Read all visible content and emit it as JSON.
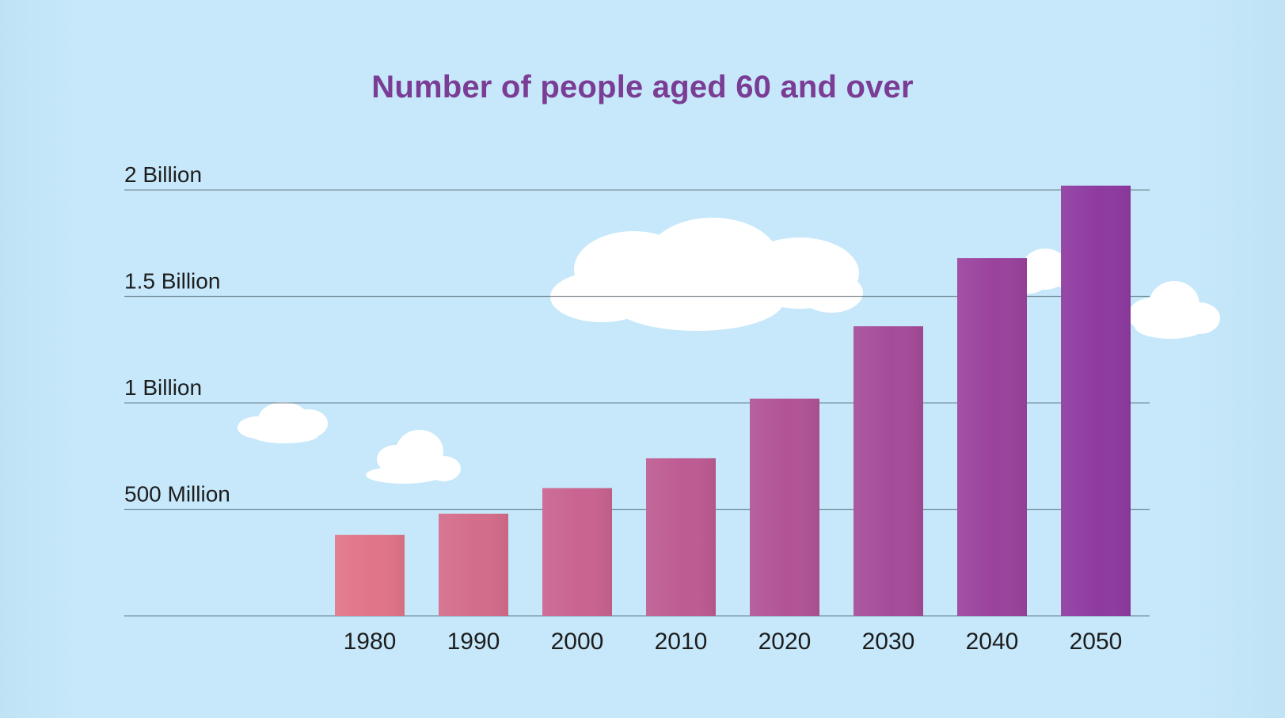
{
  "colors": {
    "background": "#c6e8fa",
    "title": "#7a3c94",
    "gridline": "#3d4a55",
    "bar_start": "#e07488",
    "bar_end": "#8e3aa0",
    "cloud": "#ffffff"
  },
  "chart_data": {
    "type": "bar",
    "title": "Number of people aged 60 and over",
    "xlabel": "",
    "ylabel": "",
    "categories": [
      "1980",
      "1990",
      "2000",
      "2010",
      "2020",
      "2030",
      "2040",
      "2050"
    ],
    "values": [
      0.38,
      0.48,
      0.6,
      0.74,
      1.02,
      1.36,
      1.68,
      2.02
    ],
    "value_unit": "billions",
    "ylim": [
      0,
      2
    ],
    "yticks": [
      {
        "value": 0.5,
        "label": "500 Million"
      },
      {
        "value": 1,
        "label": "1 Billion"
      },
      {
        "value": 1.5,
        "label": "1.5 Billion"
      },
      {
        "value": 2,
        "label": "2 Billion"
      }
    ],
    "grid": true,
    "legend": "none"
  }
}
